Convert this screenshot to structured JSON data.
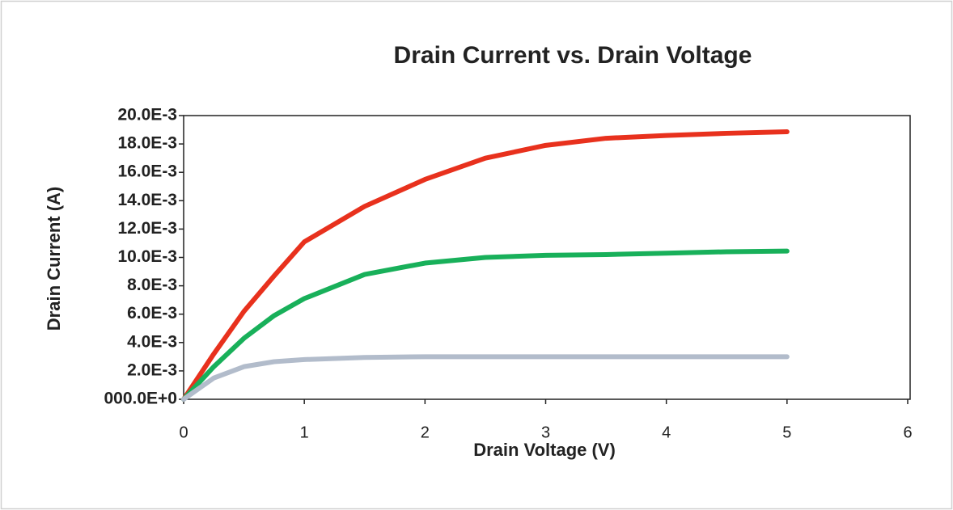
{
  "chart_data": {
    "type": "line",
    "title": "Drain Current vs. Drain Voltage",
    "x_label": "Drain Voltage (V)",
    "y_label": "Drain Current (A)",
    "x": [
      0,
      0.25,
      0.5,
      0.75,
      1,
      1.5,
      2,
      2.5,
      3,
      3.5,
      4,
      4.5,
      5
    ],
    "series": [
      {
        "color": "#e8311d",
        "values": [
          0,
          0.0032,
          0.0062,
          0.0087,
          0.0111,
          0.0136,
          0.0155,
          0.017,
          0.0179,
          0.0184,
          0.0186,
          0.01875,
          0.01886
        ]
      },
      {
        "color": "#18b05a",
        "values": [
          0,
          0.0023,
          0.0043,
          0.0059,
          0.0071,
          0.0088,
          0.0096,
          0.01,
          0.01015,
          0.0102,
          0.0103,
          0.0104,
          0.01045
        ]
      },
      {
        "color": "#b2bccb",
        "values": [
          0,
          0.0015,
          0.0023,
          0.00265,
          0.0028,
          0.00295,
          0.003,
          0.003,
          0.003,
          0.003,
          0.003,
          0.003,
          0.003
        ]
      }
    ],
    "xlim": [
      0,
      6
    ],
    "xticks": [
      0,
      1,
      2,
      3,
      4,
      5,
      6
    ],
    "ylim": [
      0,
      0.02
    ],
    "yticks": [
      {
        "value": 0,
        "label": "000.0E+0"
      },
      {
        "value": 0.002,
        "label": "2.0E-3"
      },
      {
        "value": 0.004,
        "label": "4.0E-3"
      },
      {
        "value": 0.006,
        "label": "6.0E-3"
      },
      {
        "value": 0.008,
        "label": "8.0E-3"
      },
      {
        "value": 0.01,
        "label": "10.0E-3"
      },
      {
        "value": 0.012,
        "label": "12.0E-3"
      },
      {
        "value": 0.014,
        "label": "14.0E-3"
      },
      {
        "value": 0.016,
        "label": "16.0E-3"
      },
      {
        "value": 0.018,
        "label": "18.0E-3"
      },
      {
        "value": 0.02,
        "label": "20.0E-3"
      }
    ],
    "grid": false
  }
}
